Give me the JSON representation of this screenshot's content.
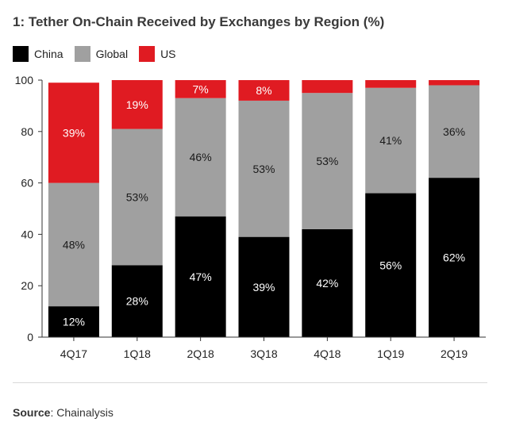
{
  "chart_data": {
    "type": "bar",
    "stacked": true,
    "title": "1: Tether On-Chain Received by Exchanges by Region (%)",
    "categories": [
      "4Q17",
      "1Q18",
      "2Q18",
      "3Q18",
      "4Q18",
      "1Q19",
      "2Q19"
    ],
    "series": [
      {
        "name": "China",
        "color": "#000000",
        "values": [
          12,
          28,
          47,
          39,
          42,
          56,
          62
        ],
        "labels": [
          "12%",
          "28%",
          "47%",
          "39%",
          "42%",
          "56%",
          "62%"
        ]
      },
      {
        "name": "Global",
        "color": "#a0a0a0",
        "values": [
          48,
          53,
          46,
          53,
          53,
          41,
          36
        ],
        "labels": [
          "48%",
          "53%",
          "46%",
          "53%",
          "53%",
          "41%",
          "36%"
        ]
      },
      {
        "name": "US",
        "color": "#e01b22",
        "values": [
          39,
          19,
          7,
          8,
          5,
          3,
          2
        ],
        "labels": [
          "39%",
          "19%",
          "7%",
          "8%",
          "",
          "",
          ""
        ]
      }
    ],
    "ylim": [
      0,
      100
    ],
    "yticks": [
      "0",
      "20",
      "40",
      "60",
      "80",
      "100"
    ],
    "xlabel": "",
    "ylabel": "",
    "legend": "top-left",
    "grid": false
  },
  "source": {
    "label": "Source",
    "text": ": Chainalysis"
  }
}
